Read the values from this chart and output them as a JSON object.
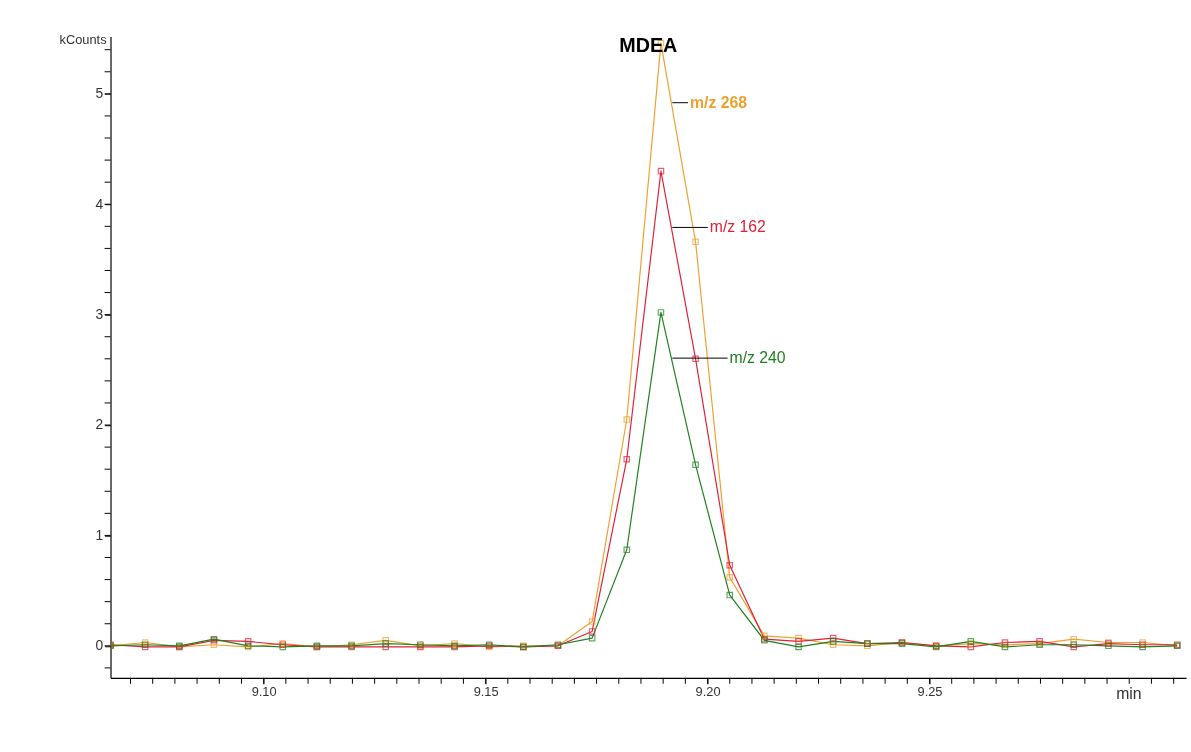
{
  "chart_data": {
    "type": "line",
    "title": "MDEA",
    "xlabel": "min",
    "ylabel": "kCounts",
    "x": [
      9.0655,
      9.0733,
      9.081,
      9.0888,
      9.0965,
      9.1043,
      9.112,
      9.1198,
      9.1275,
      9.1353,
      9.143,
      9.1508,
      9.1585,
      9.1663,
      9.174,
      9.1818,
      9.1895,
      9.1973,
      9.205,
      9.2128,
      9.2205,
      9.2283,
      9.236,
      9.2438,
      9.2515,
      9.2593,
      9.267,
      9.2748,
      9.2825,
      9.2903,
      9.298,
      9.3058
    ],
    "series": [
      {
        "name": "m/z 268",
        "color": "#f0a030",
        "values": [
          0,
          0.03,
          -0.01,
          0.01,
          -0.01,
          0.02,
          -0.01,
          0.01,
          0.05,
          0,
          0.02,
          -0.01,
          0,
          0,
          0.22,
          2.05,
          5.46,
          3.66,
          0.62,
          0.09,
          0.07,
          0.01,
          0,
          0.03,
          0,
          0.02,
          0.01,
          0.02,
          0.06,
          0.03,
          0.03,
          0
        ]
      },
      {
        "name": "m/z 162",
        "color": "#e0203a",
        "values": [
          0.01,
          -0.01,
          -0.01,
          0.05,
          0.04,
          0.01,
          -0.01,
          -0.01,
          -0.01,
          -0.01,
          -0.01,
          0,
          -0.01,
          0,
          0.13,
          1.69,
          4.3,
          2.6,
          0.73,
          0.06,
          0.04,
          0.07,
          0.02,
          0.03,
          0,
          -0.01,
          0.03,
          0.04,
          -0.01,
          0.02,
          0.01,
          0.01
        ]
      },
      {
        "name": "m/z 240",
        "color": "#208020",
        "values": [
          0,
          0.01,
          0,
          0.06,
          0,
          -0.01,
          0,
          0,
          0.02,
          0.01,
          0,
          0.01,
          -0.01,
          0.01,
          0.07,
          0.87,
          3.02,
          1.64,
          0.46,
          0.05,
          -0.01,
          0.04,
          0.02,
          0.02,
          -0.01,
          0.04,
          -0.01,
          0.01,
          0.01,
          0,
          -0.01,
          0
        ]
      }
    ],
    "xlim": [
      9.0655,
      9.3078
    ],
    "ylim": [
      -0.29,
      5.52
    ],
    "xticks": [
      {
        "value": 9.07,
        "label": null
      },
      {
        "value": 9.075,
        "label": null
      },
      {
        "value": 9.08,
        "label": null
      },
      {
        "value": 9.085,
        "label": null
      },
      {
        "value": 9.09,
        "label": null
      },
      {
        "value": 9.095,
        "label": null
      },
      {
        "value": 9.1,
        "label": "9.10"
      },
      {
        "value": 9.105,
        "label": null
      },
      {
        "value": 9.11,
        "label": null
      },
      {
        "value": 9.115,
        "label": null
      },
      {
        "value": 9.12,
        "label": null
      },
      {
        "value": 9.125,
        "label": null
      },
      {
        "value": 9.13,
        "label": null
      },
      {
        "value": 9.135,
        "label": null
      },
      {
        "value": 9.14,
        "label": null
      },
      {
        "value": 9.145,
        "label": null
      },
      {
        "value": 9.15,
        "label": "9.15"
      },
      {
        "value": 9.155,
        "label": null
      },
      {
        "value": 9.16,
        "label": null
      },
      {
        "value": 9.165,
        "label": null
      },
      {
        "value": 9.17,
        "label": null
      },
      {
        "value": 9.175,
        "label": null
      },
      {
        "value": 9.18,
        "label": null
      },
      {
        "value": 9.185,
        "label": null
      },
      {
        "value": 9.19,
        "label": null
      },
      {
        "value": 9.195,
        "label": null
      },
      {
        "value": 9.2,
        "label": "9.20"
      },
      {
        "value": 9.205,
        "label": null
      },
      {
        "value": 9.21,
        "label": null
      },
      {
        "value": 9.215,
        "label": null
      },
      {
        "value": 9.22,
        "label": null
      },
      {
        "value": 9.225,
        "label": null
      },
      {
        "value": 9.23,
        "label": null
      },
      {
        "value": 9.235,
        "label": null
      },
      {
        "value": 9.24,
        "label": null
      },
      {
        "value": 9.245,
        "label": null
      },
      {
        "value": 9.25,
        "label": "9.25"
      },
      {
        "value": 9.255,
        "label": null
      },
      {
        "value": 9.26,
        "label": null
      },
      {
        "value": 9.265,
        "label": null
      },
      {
        "value": 9.27,
        "label": null
      },
      {
        "value": 9.275,
        "label": null
      },
      {
        "value": 9.28,
        "label": null
      },
      {
        "value": 9.285,
        "label": null
      },
      {
        "value": 9.29,
        "label": null
      },
      {
        "value": 9.295,
        "label": null
      },
      {
        "value": 9.3,
        "label": null
      },
      {
        "value": 9.305,
        "label": null
      }
    ],
    "yticks": [
      {
        "value": -0.2,
        "label": null
      },
      0,
      {
        "value": 0.2,
        "label": null
      },
      {
        "value": 0.4,
        "label": null
      },
      {
        "value": 0.6,
        "label": null
      },
      {
        "value": 0.8,
        "label": null
      },
      1,
      {
        "value": 1.2,
        "label": null
      },
      {
        "value": 1.4,
        "label": null
      },
      {
        "value": 1.6,
        "label": null
      },
      {
        "value": 1.8,
        "label": null
      },
      2,
      {
        "value": 2.2,
        "label": null
      },
      {
        "value": 2.4,
        "label": null
      },
      {
        "value": 2.6,
        "label": null
      },
      {
        "value": 2.8,
        "label": null
      },
      3,
      {
        "value": 3.2,
        "label": null
      },
      {
        "value": 3.4,
        "label": null
      },
      {
        "value": 3.6,
        "label": null
      },
      {
        "value": 3.8,
        "label": null
      },
      4,
      {
        "value": 4.2,
        "label": null
      },
      {
        "value": 4.4,
        "label": null
      },
      {
        "value": 4.6,
        "label": null
      },
      {
        "value": 4.8,
        "label": null
      },
      5,
      {
        "value": 5.2,
        "label": null
      },
      {
        "value": 5.4,
        "label": null
      }
    ],
    "grid": false,
    "legend": false,
    "marker": "square",
    "line_style": "solid"
  }
}
